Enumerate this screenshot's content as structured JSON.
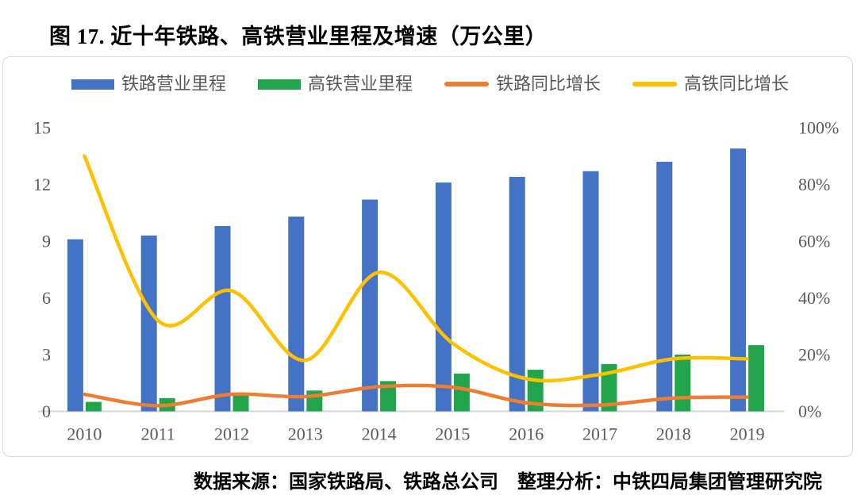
{
  "title": "图 17. 近十年铁路、高铁营业里程及增速（万公里）",
  "footer": "数据来源：国家铁路局、铁路总公司　整理分析：中铁四局集团管理研究院",
  "colors": {
    "railway_bar": "#4472C4",
    "hsr_bar": "#21A44B",
    "railway_growth_line": "#ED7D31",
    "hsr_growth_line": "#FFC000",
    "axis_text": "#595959",
    "axis_line": "#D6D6D6",
    "frame_border": "#D9D9D9"
  },
  "chart_data": {
    "type": "combo-bar-line",
    "title": "图 17. 近十年铁路、高铁营业里程及增速（万公里）",
    "categories": [
      "2010",
      "2011",
      "2012",
      "2013",
      "2014",
      "2015",
      "2016",
      "2017",
      "2018",
      "2019"
    ],
    "series": [
      {
        "name": "铁路营业里程",
        "type": "bar",
        "axis": "left",
        "color": "#4472C4",
        "values": [
          9.1,
          9.3,
          9.8,
          10.3,
          11.2,
          12.1,
          12.4,
          12.7,
          13.2,
          13.9
        ]
      },
      {
        "name": "高铁营业里程",
        "type": "bar",
        "axis": "left",
        "color": "#21A44B",
        "values": [
          0.5,
          0.7,
          0.9,
          1.1,
          1.6,
          2.0,
          2.2,
          2.5,
          3.0,
          3.5
        ]
      },
      {
        "name": "铁路同比增长",
        "type": "line",
        "axis": "right",
        "color": "#ED7D31",
        "values": [
          6,
          2,
          6,
          5.2,
          8.7,
          8.5,
          3,
          2.2,
          4.7,
          5
        ]
      },
      {
        "name": "高铁同比增长",
        "type": "line",
        "axis": "right",
        "color": "#FFC000",
        "values": [
          90,
          32,
          42.5,
          18,
          49,
          24,
          11.5,
          13,
          18.5,
          18.5
        ]
      }
    ],
    "left_axis": {
      "min": 0,
      "max": 15,
      "step": 3,
      "ticks": [
        "0",
        "3",
        "6",
        "9",
        "12",
        "15"
      ],
      "unit": "万公里"
    },
    "right_axis": {
      "min": 0,
      "max": 100,
      "step": 20,
      "ticks": [
        "0%",
        "20%",
        "40%",
        "60%",
        "80%",
        "100%"
      ],
      "unit": "%"
    },
    "legend_position": "top",
    "grid": false,
    "smooth_lines": true
  }
}
